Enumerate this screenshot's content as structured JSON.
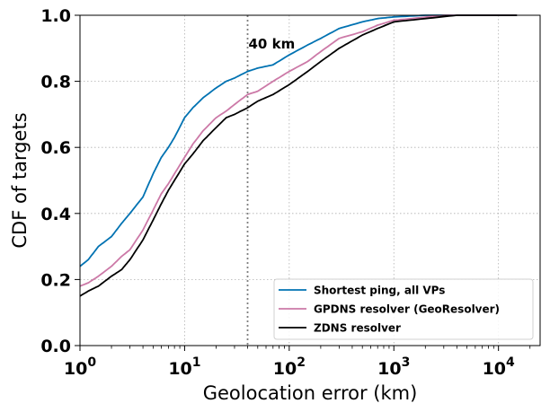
{
  "chart_data": {
    "type": "line",
    "xlabel": "Geolocation error (km)",
    "ylabel": "CDF of targets",
    "xscale": "log",
    "xlim": [
      1,
      25000
    ],
    "ylim": [
      0,
      1
    ],
    "grid": true,
    "legend_position": "bottom-right",
    "x_ticks": [
      1,
      10,
      100,
      1000,
      10000
    ],
    "x_tick_labels": [
      {
        "base": "10",
        "exp": "0"
      },
      {
        "base": "10",
        "exp": "1"
      },
      {
        "base": "10",
        "exp": "2"
      },
      {
        "base": "10",
        "exp": "3"
      },
      {
        "base": "10",
        "exp": "4"
      }
    ],
    "y_ticks": [
      0,
      0.2,
      0.4,
      0.6,
      0.8,
      1.0
    ],
    "y_tick_labels": [
      "0.0",
      "0.2",
      "0.4",
      "0.6",
      "0.8",
      "1.0"
    ],
    "annotation": {
      "x": 40,
      "label": "40 km"
    },
    "series": [
      {
        "name": "Shortest ping, all VPs",
        "color": "#0072b2",
        "points": [
          [
            1,
            0.24
          ],
          [
            1.2,
            0.26
          ],
          [
            1.5,
            0.3
          ],
          [
            2,
            0.33
          ],
          [
            2.5,
            0.37
          ],
          [
            3,
            0.4
          ],
          [
            4,
            0.45
          ],
          [
            5,
            0.52
          ],
          [
            6,
            0.57
          ],
          [
            7,
            0.6
          ],
          [
            8,
            0.63
          ],
          [
            10,
            0.69
          ],
          [
            12,
            0.72
          ],
          [
            15,
            0.75
          ],
          [
            20,
            0.78
          ],
          [
            25,
            0.8
          ],
          [
            30,
            0.81
          ],
          [
            40,
            0.83
          ],
          [
            50,
            0.84
          ],
          [
            70,
            0.85
          ],
          [
            100,
            0.88
          ],
          [
            150,
            0.91
          ],
          [
            200,
            0.93
          ],
          [
            300,
            0.96
          ],
          [
            500,
            0.98
          ],
          [
            700,
            0.99
          ],
          [
            1000,
            0.995
          ],
          [
            2000,
            1.0
          ],
          [
            15000,
            1.0
          ]
        ]
      },
      {
        "name": "GPDNS resolver (GeoResolver)",
        "color": "#cc79a7",
        "points": [
          [
            1,
            0.18
          ],
          [
            1.2,
            0.19
          ],
          [
            1.5,
            0.21
          ],
          [
            2,
            0.24
          ],
          [
            2.5,
            0.27
          ],
          [
            3,
            0.29
          ],
          [
            4,
            0.35
          ],
          [
            5,
            0.41
          ],
          [
            6,
            0.46
          ],
          [
            7,
            0.49
          ],
          [
            8,
            0.52
          ],
          [
            10,
            0.57
          ],
          [
            12,
            0.61
          ],
          [
            15,
            0.65
          ],
          [
            20,
            0.69
          ],
          [
            25,
            0.71
          ],
          [
            30,
            0.73
          ],
          [
            40,
            0.76
          ],
          [
            50,
            0.77
          ],
          [
            70,
            0.8
          ],
          [
            100,
            0.83
          ],
          [
            150,
            0.86
          ],
          [
            200,
            0.89
          ],
          [
            300,
            0.93
          ],
          [
            500,
            0.95
          ],
          [
            700,
            0.97
          ],
          [
            1000,
            0.985
          ],
          [
            1500,
            0.99
          ],
          [
            3000,
            1.0
          ],
          [
            15000,
            1.0
          ]
        ]
      },
      {
        "name": "ZDNS resolver",
        "color": "#000000",
        "points": [
          [
            1,
            0.15
          ],
          [
            1.2,
            0.165
          ],
          [
            1.5,
            0.18
          ],
          [
            2,
            0.21
          ],
          [
            2.5,
            0.23
          ],
          [
            3,
            0.26
          ],
          [
            4,
            0.32
          ],
          [
            5,
            0.38
          ],
          [
            6,
            0.43
          ],
          [
            7,
            0.47
          ],
          [
            8,
            0.5
          ],
          [
            10,
            0.55
          ],
          [
            12,
            0.58
          ],
          [
            15,
            0.62
          ],
          [
            20,
            0.66
          ],
          [
            25,
            0.69
          ],
          [
            30,
            0.7
          ],
          [
            40,
            0.72
          ],
          [
            50,
            0.74
          ],
          [
            70,
            0.76
          ],
          [
            100,
            0.79
          ],
          [
            150,
            0.83
          ],
          [
            200,
            0.86
          ],
          [
            300,
            0.9
          ],
          [
            500,
            0.94
          ],
          [
            700,
            0.96
          ],
          [
            1000,
            0.98
          ],
          [
            2000,
            0.99
          ],
          [
            4000,
            1.0
          ],
          [
            15000,
            1.0
          ]
        ]
      }
    ]
  }
}
